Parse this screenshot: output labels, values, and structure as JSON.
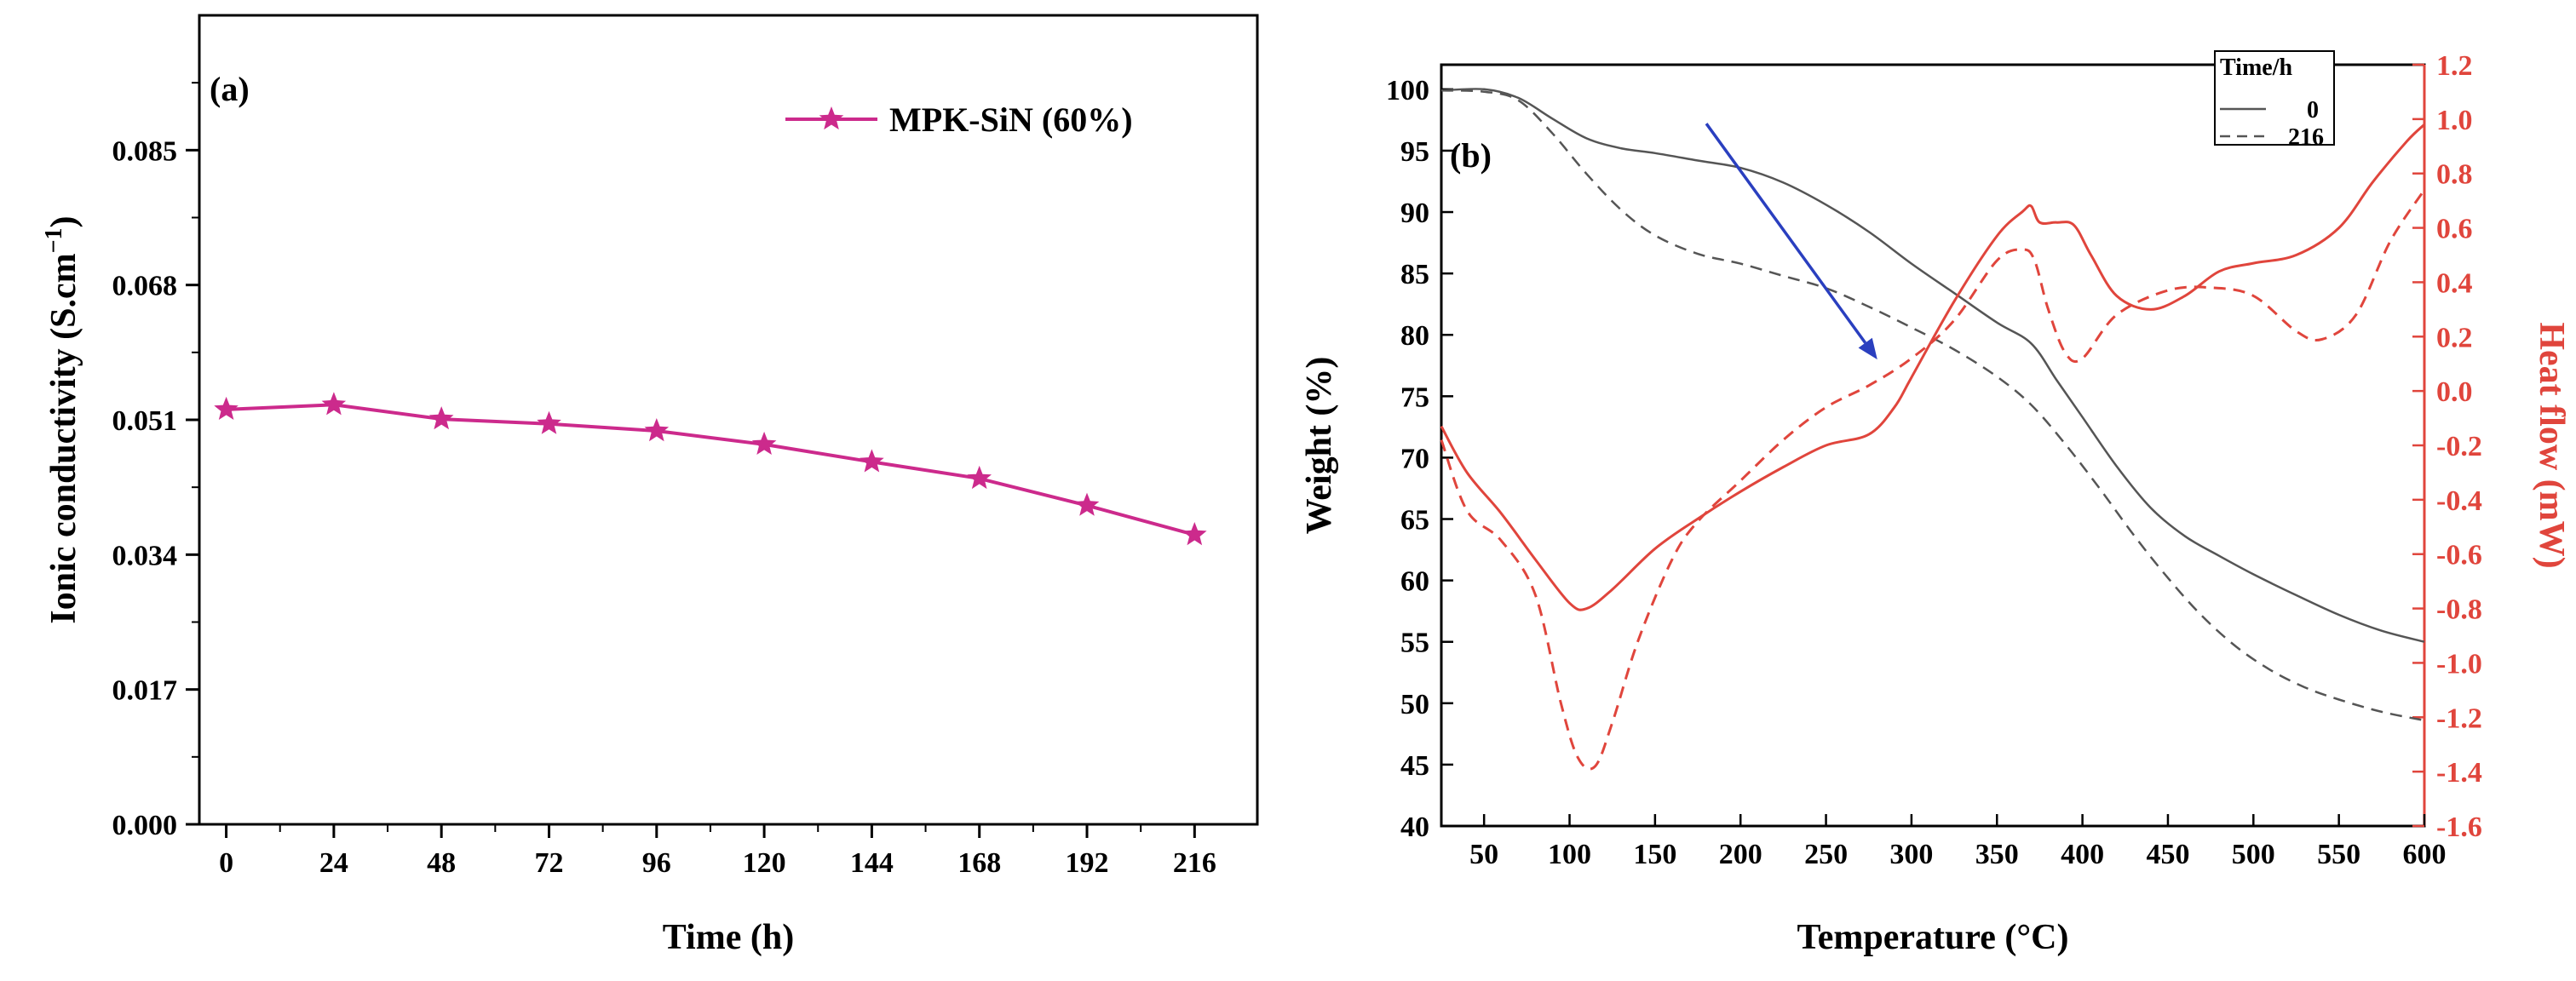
{
  "chart_data": [
    {
      "type": "line",
      "panel_label": "(a)",
      "xlabel": "Time (h)",
      "ylabel": "Ionic conductivity (S.cm",
      "ylabel_sup": "−1",
      "ylabel_close": ")",
      "xlim": [
        -6,
        230
      ],
      "ylim": [
        0.0,
        0.102
      ],
      "xticks": [
        0,
        24,
        48,
        72,
        96,
        120,
        144,
        168,
        192,
        216
      ],
      "yticks": [
        0.0,
        0.017,
        0.034,
        0.051,
        0.068,
        0.085
      ],
      "ytick_labels": [
        "0.000",
        "0.017",
        "0.034",
        "0.051",
        "0.068",
        "0.085"
      ],
      "legend_position": "top-right",
      "series": [
        {
          "name": "MPK-SiN (60%)",
          "color": "#cc2a8c",
          "marker": "star",
          "x": [
            0,
            24,
            48,
            72,
            96,
            120,
            144,
            168,
            192,
            216
          ],
          "y": [
            0.0523,
            0.0529,
            0.0511,
            0.0505,
            0.0496,
            0.0479,
            0.0457,
            0.0436,
            0.0402,
            0.0365
          ]
        }
      ]
    },
    {
      "type": "line",
      "panel_label": "(b)",
      "xlabel": "Temperature (°C)",
      "ylabel": "Weight (%)",
      "y2label": "Heat flow (mW)",
      "xlim": [
        25,
        600
      ],
      "ylim": [
        40,
        102
      ],
      "y2lim": [
        -1.6,
        1.2
      ],
      "xticks": [
        50,
        100,
        150,
        200,
        250,
        300,
        350,
        400,
        450,
        500,
        550,
        600
      ],
      "yticks": [
        40,
        45,
        50,
        55,
        60,
        65,
        70,
        75,
        80,
        85,
        90,
        95,
        100
      ],
      "y2ticks": [
        -1.6,
        -1.4,
        -1.2,
        -1.0,
        -0.8,
        -0.6,
        -0.4,
        -0.2,
        0.0,
        0.2,
        0.4,
        0.6,
        0.8,
        1.0,
        1.2
      ],
      "y2tick_labels": [
        "-1.6",
        "-1.4",
        "-1.2",
        "-1.0",
        "-0.8",
        "-0.6",
        "-0.4",
        "-0.2",
        "0.0",
        "0.2",
        "0.4",
        "0.6",
        "0.8",
        "1.0",
        "1.2"
      ],
      "legend_title": "Time/h",
      "legend_position": "top-right",
      "arrow_color": "#2a3fbf",
      "arrow": {
        "from": [
          180,
          97.2
        ],
        "to": [
          280,
          78.0
        ]
      },
      "series": [
        {
          "name": "0",
          "axis": "left",
          "color": "#555555",
          "dash": "solid",
          "x": [
            25,
            50,
            70,
            90,
            110,
            130,
            150,
            175,
            200,
            225,
            250,
            275,
            300,
            325,
            350,
            370,
            385,
            400,
            420,
            440,
            460,
            480,
            500,
            525,
            550,
            575,
            600
          ],
          "y": [
            99.9,
            100.0,
            99.3,
            97.6,
            96.0,
            95.2,
            94.8,
            94.2,
            93.6,
            92.4,
            90.6,
            88.4,
            85.8,
            83.4,
            81.0,
            79.3,
            76.3,
            73.3,
            69.3,
            65.9,
            63.6,
            62.0,
            60.5,
            58.8,
            57.2,
            55.9,
            55.0
          ]
        },
        {
          "name": "216",
          "axis": "left",
          "color": "#555555",
          "dash": "dashed",
          "x": [
            25,
            50,
            70,
            90,
            110,
            130,
            150,
            175,
            200,
            225,
            250,
            275,
            300,
            325,
            350,
            370,
            390,
            410,
            430,
            450,
            470,
            490,
            510,
            530,
            550,
            575,
            600
          ],
          "y": [
            99.9,
            99.8,
            99.1,
            96.4,
            93.1,
            90.2,
            88.1,
            86.6,
            85.8,
            84.8,
            83.8,
            82.3,
            80.6,
            78.8,
            76.6,
            74.3,
            71.1,
            67.5,
            63.7,
            60.2,
            57.1,
            54.6,
            52.7,
            51.3,
            50.3,
            49.3,
            48.6
          ]
        },
        {
          "name": "0",
          "axis": "right",
          "color": "#e0453c",
          "dash": "solid",
          "x": [
            25,
            40,
            60,
            80,
            100,
            110,
            125,
            150,
            175,
            200,
            225,
            250,
            275,
            290,
            300,
            325,
            350,
            365,
            370,
            375,
            385,
            395,
            405,
            420,
            440,
            460,
            480,
            500,
            525,
            550,
            570,
            590,
            600
          ],
          "y": [
            -0.13,
            -0.3,
            -0.45,
            -0.62,
            -0.78,
            -0.8,
            -0.73,
            -0.58,
            -0.47,
            -0.37,
            -0.28,
            -0.2,
            -0.16,
            -0.06,
            0.05,
            0.33,
            0.57,
            0.66,
            0.68,
            0.62,
            0.62,
            0.61,
            0.5,
            0.35,
            0.3,
            0.35,
            0.44,
            0.47,
            0.5,
            0.6,
            0.77,
            0.92,
            0.98
          ]
        },
        {
          "name": "216",
          "axis": "right",
          "color": "#e0453c",
          "dash": "dashed",
          "x": [
            25,
            40,
            60,
            80,
            95,
            105,
            115,
            125,
            140,
            160,
            175,
            200,
            225,
            250,
            275,
            300,
            325,
            350,
            365,
            372,
            380,
            390,
            400,
            420,
            450,
            475,
            500,
            525,
            540,
            560,
            580,
            600
          ],
          "y": [
            -0.18,
            -0.44,
            -0.55,
            -0.75,
            -1.15,
            -1.35,
            -1.38,
            -1.22,
            -0.92,
            -0.62,
            -0.48,
            -0.33,
            -0.18,
            -0.06,
            0.02,
            0.12,
            0.26,
            0.48,
            0.52,
            0.48,
            0.3,
            0.14,
            0.12,
            0.28,
            0.37,
            0.38,
            0.35,
            0.22,
            0.19,
            0.28,
            0.55,
            0.74
          ]
        }
      ]
    }
  ]
}
